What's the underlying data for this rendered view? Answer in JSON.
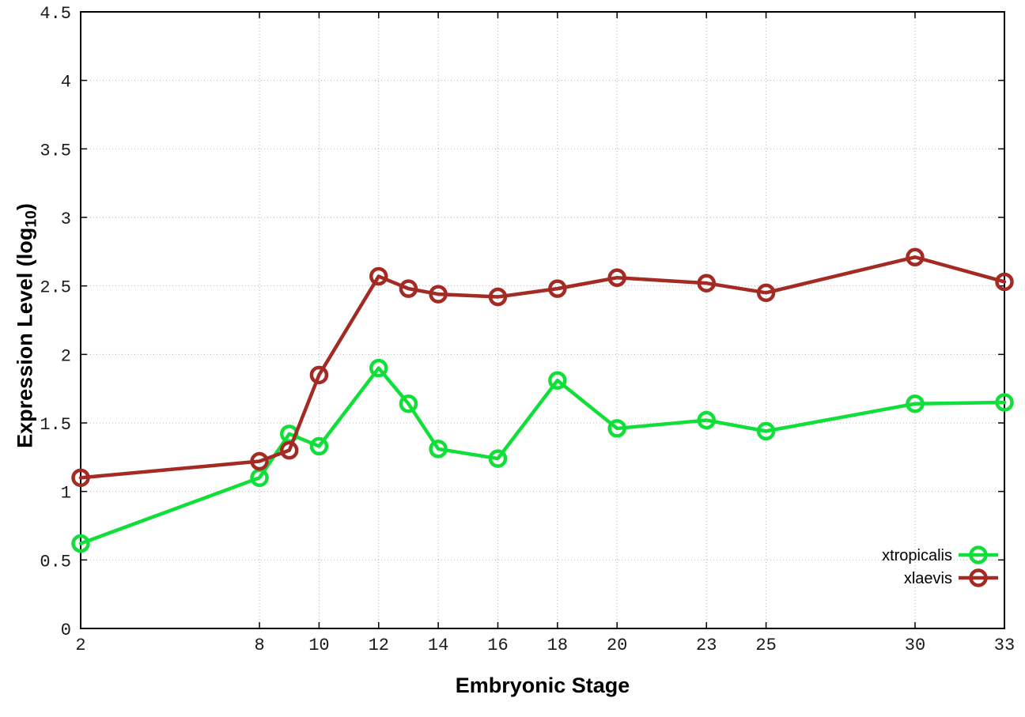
{
  "figure": {
    "xlabel": "Embryonic Stage",
    "ylabel_prefix": "Expression Level (log",
    "ylabel_sub": "10",
    "ylabel_suffix": ")"
  },
  "chart_data": {
    "type": "line",
    "title": "",
    "xlabel": "Embryonic Stage",
    "ylabel": "Expression Level (log10)",
    "xlim": [
      2,
      33
    ],
    "ylim": [
      0,
      4.5
    ],
    "grid": true,
    "grid_style": "dotted",
    "legend_position": "bottom-right",
    "frame_color": "#000000",
    "grid_color": "#b4b4b4",
    "x_tick_values": [
      2,
      8,
      10,
      12,
      14,
      16,
      18,
      20,
      23,
      25,
      30,
      33
    ],
    "x_tick_labels": [
      "2",
      "8",
      "10",
      "12",
      "14",
      "16",
      "18",
      "20",
      "23",
      "25",
      "30",
      "33"
    ],
    "y_tick_values": [
      0,
      0.5,
      1,
      1.5,
      2,
      2.5,
      3,
      3.5,
      4,
      4.5
    ],
    "y_tick_labels": [
      "0",
      "0.5",
      "1",
      "1.5",
      "2",
      "2.5",
      "3",
      "3.5",
      "4",
      "4.5"
    ],
    "x": [
      2,
      8,
      9,
      10,
      12,
      13,
      14,
      16,
      18,
      20,
      23,
      25,
      30,
      33
    ],
    "series": [
      {
        "name": "xtropicalis",
        "color": "#10df3a",
        "marker": "open-circle",
        "values": [
          0.62,
          1.1,
          1.42,
          1.33,
          1.9,
          1.64,
          1.31,
          1.24,
          1.81,
          1.46,
          1.52,
          1.44,
          1.64,
          1.65
        ]
      },
      {
        "name": "xlaevis",
        "color": "#a32b24",
        "marker": "open-circle",
        "values": [
          1.1,
          1.22,
          1.3,
          1.85,
          2.57,
          2.48,
          2.44,
          2.42,
          2.48,
          2.56,
          2.52,
          2.45,
          2.71,
          2.53
        ]
      }
    ]
  }
}
